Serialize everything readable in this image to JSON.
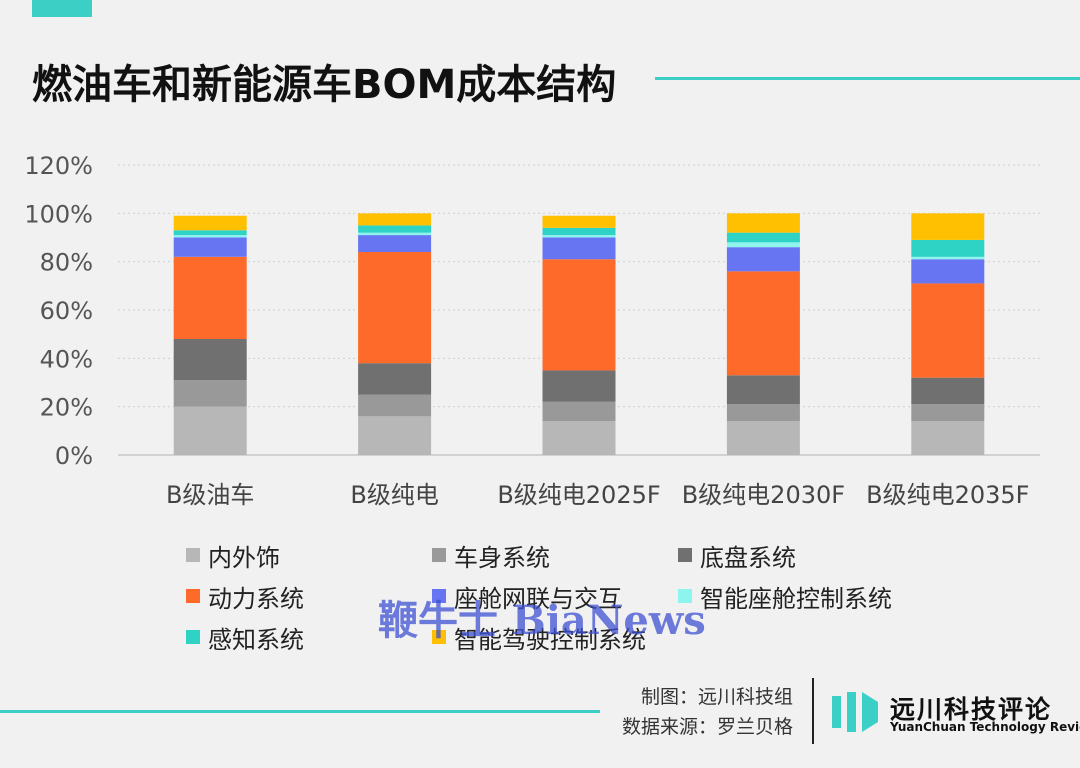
{
  "page": {
    "title": "燃油车和新能源车BOM成本结构",
    "credit_maker": "制图：远川科技组",
    "credit_source": "数据来源：罗兰贝格",
    "logo_cn": "远川科技评论",
    "logo_en": "YuanChuan Technology Review",
    "watermark": "鞭牛士 BiaNews",
    "accent_color": "#3ccfc6"
  },
  "chart_data": {
    "type": "bar",
    "stacked": true,
    "title": "燃油车和新能源车BOM成本结构",
    "xlabel": "",
    "ylabel": "",
    "ylim": [
      0,
      120
    ],
    "yticks": [
      "0%",
      "20%",
      "40%",
      "60%",
      "80%",
      "100%",
      "120%"
    ],
    "grid": true,
    "legend_position": "bottom",
    "categories": [
      "B级油车",
      "B级纯电",
      "B级纯电2025F",
      "B级纯电2030F",
      "B级纯电2035F"
    ],
    "series": [
      {
        "name": "内外饰",
        "color": "#b7b7b7",
        "values": [
          20,
          16,
          14,
          14,
          14
        ]
      },
      {
        "name": "车身系统",
        "color": "#999999",
        "values": [
          11,
          9,
          8,
          7,
          7
        ]
      },
      {
        "name": "底盘系统",
        "color": "#707070",
        "values": [
          17,
          13,
          13,
          12,
          11
        ]
      },
      {
        "name": "动力系统",
        "color": "#fd6a2a",
        "values": [
          34,
          46,
          46,
          43,
          39
        ]
      },
      {
        "name": "座舱网联与交互",
        "color": "#6875f2",
        "values": [
          8,
          7,
          9,
          10,
          10
        ]
      },
      {
        "name": "智能座舱控制系统",
        "color": "#8ef4ee",
        "values": [
          1,
          1,
          1,
          2,
          1
        ]
      },
      {
        "name": "感知系统",
        "color": "#2ed3c6",
        "values": [
          2,
          3,
          3,
          4,
          7
        ]
      },
      {
        "name": "智能驾驶控制系统",
        "color": "#fec000",
        "values": [
          6,
          5,
          5,
          8,
          11
        ]
      }
    ]
  }
}
